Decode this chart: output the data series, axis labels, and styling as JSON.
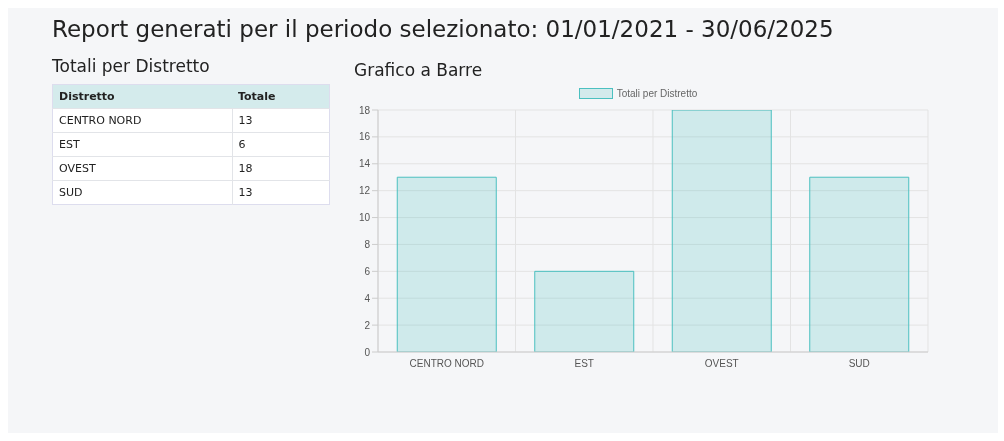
{
  "chart_data": [
    {
      "type": "other",
      "title": "Report generati per il periodo selezionato: 01/01/2021 - 30/06/2025",
      "subtitle": "Totali per Distretto",
      "annotations": [
        "Distretto",
        "Totale"
      ],
      "categories": [
        "CENTRO NORD",
        "EST",
        "OVEST",
        "SUD"
      ],
      "values": [
        13,
        6,
        18,
        13
      ],
      "data_labels": true
    },
    {
      "type": "bar",
      "title": "Grafico a Barre",
      "categories": [
        "CENTRO NORD",
        "EST",
        "OVEST",
        "SUD"
      ],
      "series": [
        {
          "name": "Totali per Distretto",
          "color": "#4bc0c0",
          "values": [
            13,
            6,
            18,
            13
          ]
        }
      ],
      "ylim": [
        0,
        18
      ],
      "yticks": [
        0,
        2,
        4,
        6,
        8,
        10,
        12,
        14,
        16,
        18
      ],
      "grid": true,
      "legend": "top"
    }
  ]
}
